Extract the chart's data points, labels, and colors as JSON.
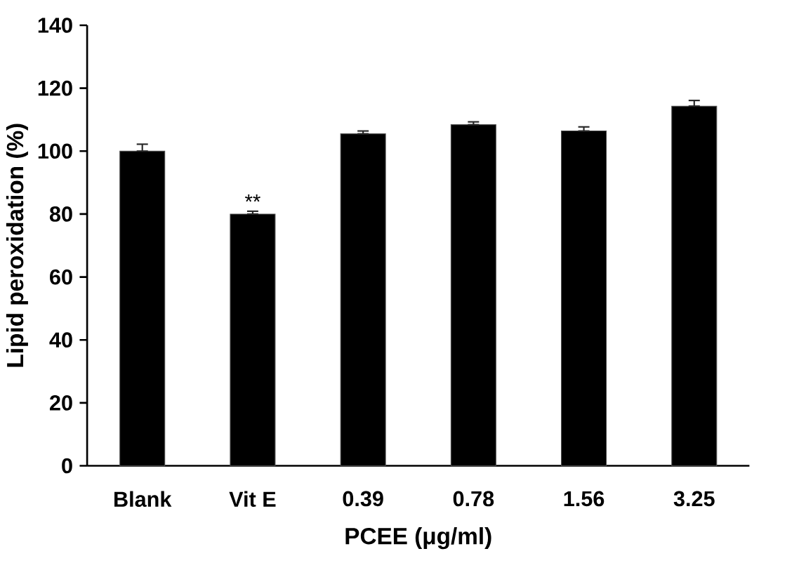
{
  "chart_data": {
    "type": "bar",
    "xlabel": "PCEE  (μg/ml)",
    "ylabel": "Lipid peroxidation (%)",
    "categories": [
      "Blank",
      "Vit E",
      "0.39",
      "0.78",
      "1.56",
      "3.25"
    ],
    "values": [
      100,
      80,
      105.5,
      108.4,
      106.4,
      114.3
    ],
    "errors": [
      [
        100,
        102.2
      ],
      [
        80,
        80.9
      ],
      [
        105.5,
        106.4
      ],
      [
        108.4,
        109.3
      ],
      [
        106.4,
        107.7
      ],
      [
        114.3,
        116.1
      ]
    ],
    "color": "#000000",
    "ylim": [
      0,
      140
    ],
    "yticks": [
      0,
      20,
      40,
      60,
      80,
      100,
      120,
      140
    ],
    "annotations": [
      {
        "text": "**",
        "x": "Vit E",
        "y": 81
      }
    ],
    "grid": false
  }
}
